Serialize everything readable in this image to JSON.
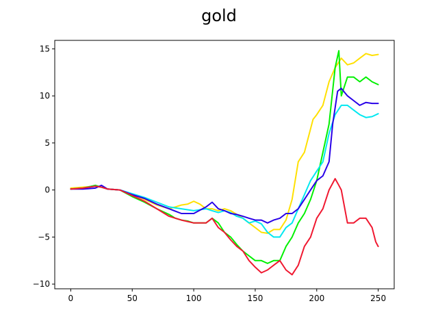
{
  "chart_data": {
    "type": "line",
    "title": "gold",
    "xlabel": "",
    "ylabel": "",
    "xlim": [
      -13,
      263
    ],
    "ylim": [
      -10.5,
      15.9
    ],
    "xticks": [
      0,
      50,
      100,
      150,
      200,
      250
    ],
    "yticks": [
      -10,
      -5,
      0,
      5,
      10,
      15
    ],
    "grid": false,
    "series": [
      {
        "color": "#ffe000",
        "points": [
          [
            0,
            0.2
          ],
          [
            10,
            0.3
          ],
          [
            20,
            0.4
          ],
          [
            25,
            0.3
          ],
          [
            30,
            0.1
          ],
          [
            40,
            0.0
          ],
          [
            50,
            -0.5
          ],
          [
            60,
            -1.0
          ],
          [
            70,
            -1.6
          ],
          [
            80,
            -2.0
          ],
          [
            85,
            -1.8
          ],
          [
            90,
            -1.6
          ],
          [
            95,
            -1.5
          ],
          [
            100,
            -1.2
          ],
          [
            105,
            -1.5
          ],
          [
            110,
            -2.0
          ],
          [
            115,
            -2.0
          ],
          [
            120,
            -2.2
          ],
          [
            125,
            -2.0
          ],
          [
            130,
            -2.2
          ],
          [
            135,
            -2.6
          ],
          [
            140,
            -3.0
          ],
          [
            145,
            -3.5
          ],
          [
            150,
            -4.0
          ],
          [
            155,
            -4.5
          ],
          [
            160,
            -4.6
          ],
          [
            165,
            -4.2
          ],
          [
            170,
            -4.2
          ],
          [
            175,
            -3.2
          ],
          [
            180,
            -1.0
          ],
          [
            185,
            3.0
          ],
          [
            190,
            4.0
          ],
          [
            193,
            5.5
          ],
          [
            197,
            7.5
          ],
          [
            200,
            8.0
          ],
          [
            205,
            9.0
          ],
          [
            210,
            11.5
          ],
          [
            215,
            13.0
          ],
          [
            220,
            14.0
          ],
          [
            225,
            13.3
          ],
          [
            230,
            13.5
          ],
          [
            235,
            14.0
          ],
          [
            240,
            14.5
          ],
          [
            245,
            14.3
          ],
          [
            250,
            14.4
          ]
        ]
      },
      {
        "color": "#00f000",
        "points": [
          [
            0,
            0.1
          ],
          [
            10,
            0.2
          ],
          [
            20,
            0.5
          ],
          [
            25,
            0.3
          ],
          [
            30,
            0.1
          ],
          [
            40,
            0.0
          ],
          [
            50,
            -0.7
          ],
          [
            60,
            -1.3
          ],
          [
            70,
            -2.0
          ],
          [
            80,
            -2.6
          ],
          [
            85,
            -3.0
          ],
          [
            90,
            -3.2
          ],
          [
            95,
            -3.3
          ],
          [
            100,
            -3.5
          ],
          [
            105,
            -3.5
          ],
          [
            110,
            -3.5
          ],
          [
            115,
            -3.0
          ],
          [
            120,
            -3.5
          ],
          [
            125,
            -4.5
          ],
          [
            130,
            -5.0
          ],
          [
            135,
            -5.8
          ],
          [
            140,
            -6.5
          ],
          [
            145,
            -7.0
          ],
          [
            150,
            -7.5
          ],
          [
            155,
            -7.5
          ],
          [
            160,
            -7.8
          ],
          [
            165,
            -7.5
          ],
          [
            170,
            -7.5
          ],
          [
            175,
            -6.0
          ],
          [
            180,
            -5.0
          ],
          [
            185,
            -3.5
          ],
          [
            190,
            -2.5
          ],
          [
            195,
            -1.0
          ],
          [
            200,
            1.0
          ],
          [
            205,
            4.0
          ],
          [
            210,
            7.0
          ],
          [
            215,
            13.0
          ],
          [
            218,
            14.8
          ],
          [
            220,
            10.0
          ],
          [
            225,
            12.0
          ],
          [
            230,
            12.0
          ],
          [
            235,
            11.5
          ],
          [
            240,
            12.0
          ],
          [
            245,
            11.5
          ],
          [
            250,
            11.2
          ]
        ]
      },
      {
        "color": "#00e8f0",
        "points": [
          [
            0,
            0.1
          ],
          [
            10,
            0.2
          ],
          [
            20,
            0.4
          ],
          [
            25,
            0.3
          ],
          [
            30,
            0.1
          ],
          [
            40,
            0.0
          ],
          [
            50,
            -0.4
          ],
          [
            60,
            -0.8
          ],
          [
            70,
            -1.3
          ],
          [
            80,
            -1.8
          ],
          [
            90,
            -2.0
          ],
          [
            100,
            -2.2
          ],
          [
            110,
            -2.0
          ],
          [
            115,
            -2.2
          ],
          [
            120,
            -2.4
          ],
          [
            125,
            -2.2
          ],
          [
            130,
            -2.4
          ],
          [
            135,
            -2.8
          ],
          [
            140,
            -3.0
          ],
          [
            145,
            -3.5
          ],
          [
            150,
            -3.3
          ],
          [
            155,
            -3.6
          ],
          [
            160,
            -4.5
          ],
          [
            165,
            -5.0
          ],
          [
            170,
            -5.0
          ],
          [
            175,
            -4.0
          ],
          [
            180,
            -3.5
          ],
          [
            185,
            -2.0
          ],
          [
            190,
            -0.5
          ],
          [
            195,
            1.0
          ],
          [
            200,
            2.0
          ],
          [
            205,
            3.0
          ],
          [
            210,
            6.0
          ],
          [
            215,
            8.0
          ],
          [
            220,
            9.0
          ],
          [
            225,
            9.0
          ],
          [
            230,
            8.5
          ],
          [
            235,
            8.0
          ],
          [
            240,
            7.7
          ],
          [
            245,
            7.8
          ],
          [
            250,
            8.1
          ]
        ]
      },
      {
        "color": "#2800e8",
        "points": [
          [
            0,
            0.1
          ],
          [
            10,
            0.1
          ],
          [
            20,
            0.2
          ],
          [
            25,
            0.5
          ],
          [
            30,
            0.1
          ],
          [
            40,
            0.0
          ],
          [
            50,
            -0.5
          ],
          [
            60,
            -0.9
          ],
          [
            70,
            -1.5
          ],
          [
            80,
            -2.0
          ],
          [
            90,
            -2.5
          ],
          [
            100,
            -2.5
          ],
          [
            110,
            -1.8
          ],
          [
            115,
            -1.3
          ],
          [
            120,
            -2.0
          ],
          [
            125,
            -2.2
          ],
          [
            130,
            -2.5
          ],
          [
            135,
            -2.6
          ],
          [
            140,
            -2.8
          ],
          [
            145,
            -3.0
          ],
          [
            150,
            -3.2
          ],
          [
            155,
            -3.2
          ],
          [
            160,
            -3.5
          ],
          [
            165,
            -3.2
          ],
          [
            170,
            -3.0
          ],
          [
            175,
            -2.5
          ],
          [
            180,
            -2.5
          ],
          [
            185,
            -2.0
          ],
          [
            190,
            -1.0
          ],
          [
            195,
            0.0
          ],
          [
            200,
            1.0
          ],
          [
            205,
            1.5
          ],
          [
            210,
            3.0
          ],
          [
            213,
            7.0
          ],
          [
            217,
            10.5
          ],
          [
            220,
            10.8
          ],
          [
            225,
            10.0
          ],
          [
            230,
            9.5
          ],
          [
            235,
            9.0
          ],
          [
            240,
            9.3
          ],
          [
            245,
            9.2
          ],
          [
            250,
            9.2
          ]
        ]
      },
      {
        "color": "#f01830",
        "points": [
          [
            0,
            0.1
          ],
          [
            10,
            0.2
          ],
          [
            20,
            0.4
          ],
          [
            25,
            0.3
          ],
          [
            30,
            0.1
          ],
          [
            40,
            0.0
          ],
          [
            50,
            -0.6
          ],
          [
            60,
            -1.2
          ],
          [
            70,
            -2.0
          ],
          [
            80,
            -2.8
          ],
          [
            90,
            -3.2
          ],
          [
            100,
            -3.5
          ],
          [
            105,
            -3.5
          ],
          [
            110,
            -3.5
          ],
          [
            115,
            -3.0
          ],
          [
            120,
            -4.0
          ],
          [
            125,
            -4.5
          ],
          [
            130,
            -5.3
          ],
          [
            135,
            -6.0
          ],
          [
            140,
            -6.5
          ],
          [
            145,
            -7.5
          ],
          [
            150,
            -8.2
          ],
          [
            155,
            -8.8
          ],
          [
            160,
            -8.5
          ],
          [
            165,
            -8.0
          ],
          [
            170,
            -7.5
          ],
          [
            175,
            -8.5
          ],
          [
            180,
            -9.0
          ],
          [
            185,
            -8.0
          ],
          [
            190,
            -6.0
          ],
          [
            195,
            -5.0
          ],
          [
            200,
            -3.0
          ],
          [
            205,
            -2.0
          ],
          [
            210,
            0.0
          ],
          [
            215,
            1.2
          ],
          [
            218,
            0.5
          ],
          [
            220,
            0.0
          ],
          [
            225,
            -3.5
          ],
          [
            230,
            -3.5
          ],
          [
            235,
            -3.0
          ],
          [
            240,
            -3.0
          ],
          [
            245,
            -4.0
          ],
          [
            248,
            -5.5
          ],
          [
            250,
            -6.0
          ]
        ]
      }
    ]
  }
}
